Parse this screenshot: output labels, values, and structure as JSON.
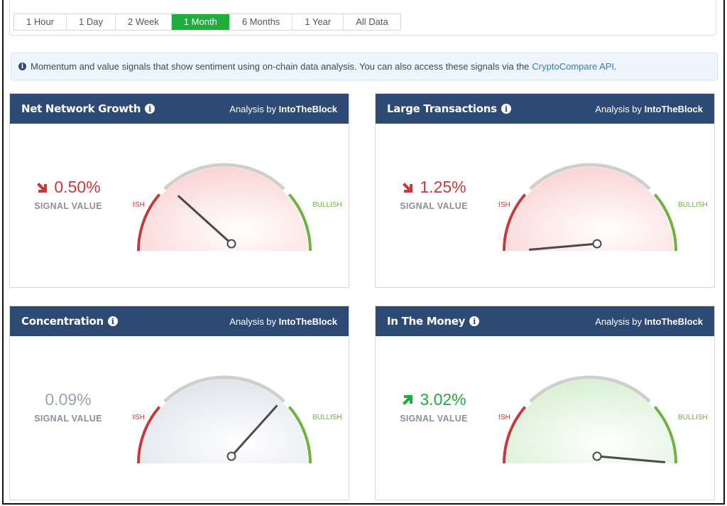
{
  "time_ranges": {
    "items": [
      "1 Hour",
      "1 Day",
      "2 Week",
      "1 Month",
      "6 Months",
      "1 Year",
      "All Data"
    ],
    "active": "1 Month"
  },
  "info_banner": {
    "text": "Momentum and value signals that show sentiment using on-chain data analysis. You can also access these signals via the",
    "link_text": "CryptoCompare API",
    "suffix": "."
  },
  "labels": {
    "signal_value": "SIGNAL VALUE",
    "bearish": "BEARISH",
    "bullish": "BULLISH",
    "analysis_by": "Analysis by",
    "provider": "IntoTheBlock"
  },
  "colors": {
    "header_bg": "#2c4a73",
    "active_tab": "#1fad3b",
    "bearish": "#c9393c",
    "bullish": "#6db33f",
    "neutral_value": "#9aa2b4",
    "link": "#2e7fc4"
  },
  "cards": [
    {
      "title": "Net Network Growth",
      "value": "0.50%",
      "trend": "down",
      "trend_icon": "arrow-down-right-icon",
      "needle_angle_deg": 138,
      "tone": "bearish"
    },
    {
      "title": "Large Transactions",
      "value": "1.25%",
      "trend": "down",
      "trend_icon": "arrow-down-right-icon",
      "needle_angle_deg": 185,
      "tone": "bearish"
    },
    {
      "title": "Concentration",
      "value": "0.09%",
      "trend": "neutral",
      "trend_icon": "",
      "needle_angle_deg": 48,
      "tone": "neutral"
    },
    {
      "title": "In The Money",
      "value": "3.02%",
      "trend": "up",
      "trend_icon": "arrow-up-right-icon",
      "needle_angle_deg": -5,
      "tone": "bullish"
    }
  ]
}
